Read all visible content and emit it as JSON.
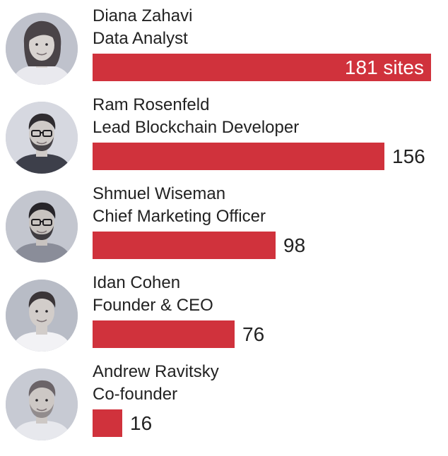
{
  "chart_data": {
    "type": "bar",
    "orientation": "horizontal",
    "unit": "sites",
    "colors": {
      "bar": "#d0323c",
      "avatar_background": "#c9ccd6",
      "label": "#222222",
      "label_inside": "#ffffff"
    },
    "rows": [
      {
        "name": "Diana Zahavi",
        "role": "Data Analyst",
        "value": 181,
        "label": "181 sites",
        "avatar_icon": "woman-portrait-icon"
      },
      {
        "name": "Ram Rosenfeld",
        "role": "Lead Blockchain Developer",
        "value": 156,
        "label": "156",
        "avatar_icon": "man-with-glasses-portrait-icon"
      },
      {
        "name": "Shmuel Wiseman",
        "role": "Chief Marketing Officer",
        "value": 98,
        "label": "98",
        "avatar_icon": "man-with-glasses-beard-portrait-icon"
      },
      {
        "name": "Idan Cohen",
        "role": "Founder & CEO",
        "value": 76,
        "label": "76",
        "avatar_icon": "smiling-man-portrait-icon"
      },
      {
        "name": "Andrew Ravitsky",
        "role": "Co-founder",
        "value": 16,
        "label": "16",
        "avatar_icon": "bearded-man-portrait-icon"
      }
    ]
  }
}
